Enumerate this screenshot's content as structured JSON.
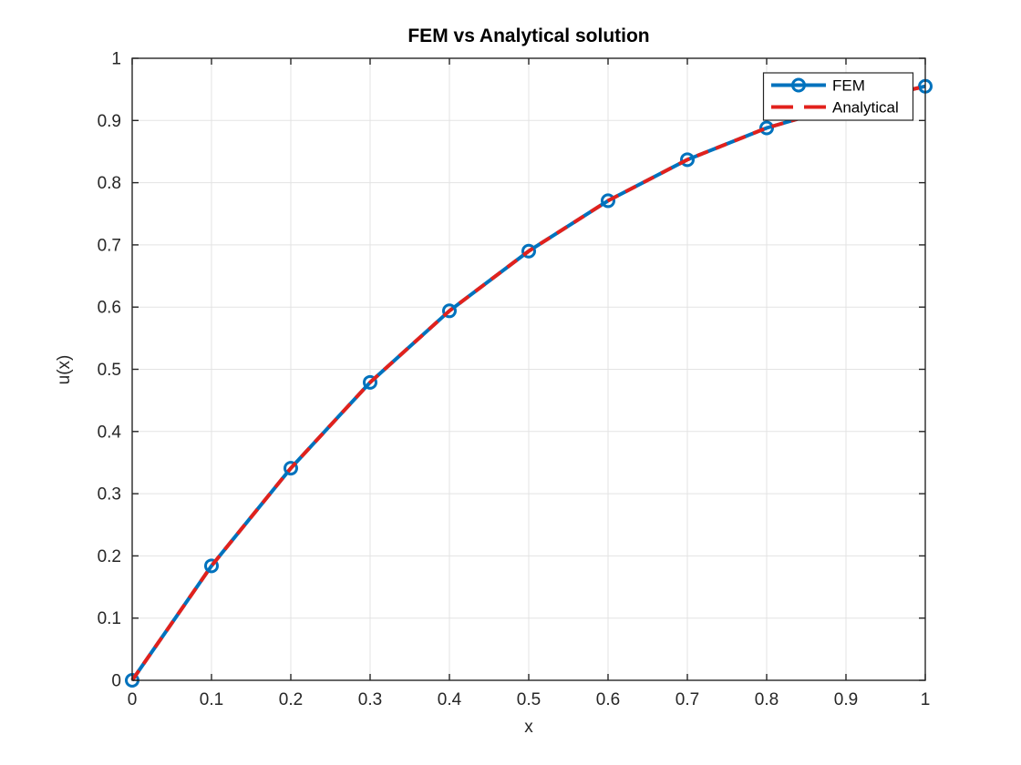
{
  "chart_data": {
    "type": "line",
    "title": "FEM vs Analytical solution",
    "xlabel": "x",
    "ylabel": "u(x)",
    "xlim": [
      0,
      1
    ],
    "ylim": [
      0,
      1
    ],
    "xticks": [
      0,
      0.1,
      0.2,
      0.3,
      0.4,
      0.5,
      0.6,
      0.7,
      0.8,
      0.9,
      1
    ],
    "yticks": [
      0,
      0.1,
      0.2,
      0.3,
      0.4,
      0.5,
      0.6,
      0.7,
      0.8,
      0.9,
      1
    ],
    "x": [
      0,
      0.1,
      0.2,
      0.3,
      0.4,
      0.5,
      0.6,
      0.7,
      0.8,
      0.9,
      1.0
    ],
    "series": [
      {
        "name": "FEM",
        "color": "#0072BD",
        "style": "solid",
        "marker": "circle",
        "values": [
          0,
          0.184,
          0.341,
          0.479,
          0.594,
          0.69,
          0.771,
          0.837,
          0.888,
          0.925,
          0.955
        ]
      },
      {
        "name": "Analytical",
        "color": "#E2211C",
        "style": "dashed",
        "marker": "none",
        "values": [
          0,
          0.184,
          0.341,
          0.479,
          0.594,
          0.69,
          0.771,
          0.837,
          0.888,
          0.925,
          0.955
        ]
      }
    ],
    "grid": true,
    "legend_position": "top-right",
    "colors": {
      "grid_line": "#E3E3E3",
      "axis_line": "#262626",
      "background": "#FFFFFF"
    }
  }
}
